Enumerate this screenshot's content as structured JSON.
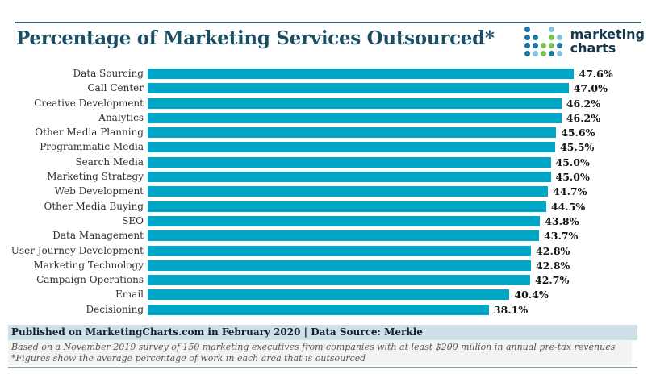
{
  "header": {
    "title": "Percentage of Marketing Services Outsourced*",
    "logo": {
      "line1": "marketing",
      "line2": "charts",
      "dots": [
        [
          "b",
          "",
          "",
          "l",
          ""
        ],
        [
          "b",
          "b",
          "",
          "g",
          "l"
        ],
        [
          "b",
          "b",
          "g",
          "g",
          "b"
        ],
        [
          "b",
          "l",
          "g",
          "b",
          "l"
        ]
      ]
    }
  },
  "chart_data": {
    "type": "bar",
    "orientation": "horizontal",
    "title": "Percentage of Marketing Services Outsourced*",
    "categories": [
      "Data Sourcing",
      "Call Center",
      "Creative Development",
      "Analytics",
      "Other Media Planning",
      "Programmatic Media",
      "Search Media",
      "Marketing Strategy",
      "Web Development",
      "Other Media Buying",
      "SEO",
      "Data Management",
      "User Journey Development",
      "Marketing Technology",
      "Campaign Operations",
      "Email",
      "Decisioning"
    ],
    "values": [
      47.6,
      47.0,
      46.2,
      46.2,
      45.6,
      45.5,
      45.0,
      45.0,
      44.7,
      44.5,
      43.8,
      43.7,
      42.8,
      42.8,
      42.7,
      40.4,
      38.1
    ],
    "value_labels": [
      "47.6%",
      "47.0%",
      "46.2%",
      "46.2%",
      "45.6%",
      "45.5%",
      "45.0%",
      "45.0%",
      "44.7%",
      "44.5%",
      "43.8%",
      "43.7%",
      "42.8%",
      "42.8%",
      "42.7%",
      "40.4%",
      "38.1%"
    ],
    "xlim": [
      0,
      50
    ],
    "xlabel": "",
    "ylabel": "",
    "grid": false,
    "legend": false,
    "bar_color": "#00a6c6"
  },
  "footer": {
    "published_line": "Published on MarketingCharts.com in February 2020 | Data Source: Merkle",
    "note_line1": "Based on a November 2019 survey of 150 marketing executives from companies with at least $200 million in annual pre-tax revenues",
    "note_line2": "*Figures show the average percentage of work in each area that is outsourced"
  },
  "colors": {
    "bar": "#00a6c6",
    "title_text": "#1b4d63",
    "top_rule": "#44606f",
    "published_bg": "#cfdfe8",
    "notes_bg": "#f3f3f1",
    "bottom_rule": "#8a9aa5",
    "logo_text": "#16394e",
    "logo_dot_blue": "#1878a8",
    "logo_dot_lightblue": "#82c3e0",
    "logo_dot_green": "#7cc14e"
  }
}
